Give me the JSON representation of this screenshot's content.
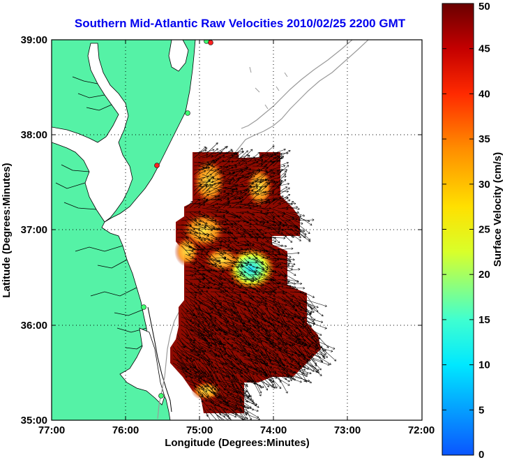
{
  "chart_data": {
    "type": "heatmap",
    "title": "Southern Mid-Atlantic Raw Velocities 2010/02/25 2200 GMT",
    "xlabel": "Longitude (Degrees:Minutes)",
    "ylabel": "Latitude (Degrees:Minutes)",
    "x_ticks": [
      "77:00",
      "76:00",
      "75:00",
      "74:00",
      "73:00",
      "72:00"
    ],
    "y_ticks": [
      "39:00",
      "38:00",
      "37:00",
      "36:00",
      "35:00"
    ],
    "xlim": [
      -77,
      -72
    ],
    "ylim": [
      35,
      39
    ],
    "grid": true,
    "colorbar": {
      "label": "Surface Velocity (cm/s)",
      "range": [
        0,
        50
      ],
      "ticks": [
        "50",
        "45",
        "40",
        "35",
        "30",
        "25",
        "20",
        "15",
        "10",
        "5",
        "0"
      ]
    }
  },
  "colors": {
    "title": "#0000ee",
    "land": "#55f2a6",
    "coast": "#000000",
    "isobath": "#9a9a9a",
    "arrows": "#000000"
  }
}
